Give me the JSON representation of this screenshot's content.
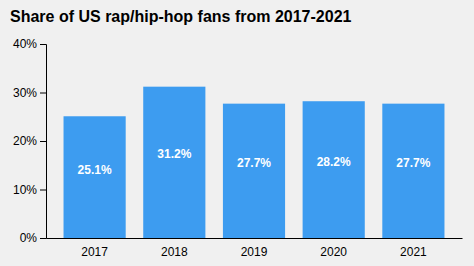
{
  "chart_data": {
    "type": "bar",
    "title": "Share of US rap/hip-hop fans from 2017-2021",
    "categories": [
      "2017",
      "2018",
      "2019",
      "2020",
      "2021"
    ],
    "values": [
      25.1,
      31.2,
      27.7,
      28.2,
      27.7
    ],
    "value_labels": [
      "25.1%",
      "31.2%",
      "27.7%",
      "28.2%",
      "27.7%"
    ],
    "data_labels": true,
    "color": "#3d9cf0",
    "ylim": [
      0,
      40
    ],
    "yticks": [
      {
        "value": 0,
        "label": "0%"
      },
      {
        "value": 10,
        "label": "10%"
      },
      {
        "value": 20,
        "label": "20%"
      },
      {
        "value": 30,
        "label": "30%"
      },
      {
        "value": 40,
        "label": "40%"
      }
    ],
    "grid": false
  }
}
